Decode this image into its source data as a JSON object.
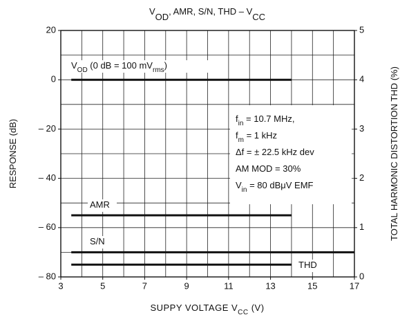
{
  "chart_data": {
    "type": "line",
    "title": [
      "V",
      "OD",
      ", AMR, S/N, THD  –  V",
      "CC"
    ],
    "xlabel": [
      "SUPPY VOLTAGE   V",
      "CC",
      "   (V)"
    ],
    "ylabel": [
      "RESPONSE  (dB)"
    ],
    "y2label": [
      "TOTAL HARMONIC DISTORTION  THD  (%)"
    ],
    "xlim": [
      3,
      17
    ],
    "xticks": [
      3,
      5,
      7,
      9,
      11,
      13,
      15,
      17
    ],
    "xgrid": [
      3,
      4,
      5,
      6,
      7,
      8,
      9,
      10,
      11,
      12,
      13,
      14,
      15,
      16,
      17
    ],
    "ylim": [
      -80,
      20
    ],
    "yticks": [
      20,
      0,
      {
        "value": -20,
        "label": "– 20"
      },
      {
        "value": -40,
        "label": "– 40"
      },
      {
        "value": -60,
        "label": "– 60"
      },
      {
        "value": -80,
        "label": "– 80"
      }
    ],
    "ygrid": [
      -80,
      -70,
      -60,
      -50,
      -40,
      -30,
      -20,
      -10,
      0,
      10,
      20
    ],
    "y2lim": [
      0,
      5
    ],
    "y2ticks": [
      0,
      1,
      2,
      3,
      4,
      5
    ],
    "grid": true,
    "series": [
      {
        "name": [
          "V",
          "OD",
          " (0 dB = 100 mV",
          "rms",
          ")"
        ],
        "color": "#111",
        "x": [
          3.5,
          14
        ],
        "values": [
          0,
          0
        ]
      },
      {
        "name": [
          "AMR"
        ],
        "color": "#111",
        "x": [
          3.5,
          14
        ],
        "values": [
          -55,
          -55
        ]
      },
      {
        "name": [
          "S/N"
        ],
        "color": "#111",
        "x": [
          3.5,
          17
        ],
        "values": [
          -70,
          -70
        ]
      },
      {
        "name": [
          "THD"
        ],
        "color": "#111",
        "x": [
          3.5,
          14
        ],
        "values": [
          0.25,
          0.25
        ],
        "axis": "y2"
      }
    ],
    "annotation": [
      [
        "f",
        "in",
        " = 10.7 MHz,"
      ],
      [
        "f",
        "m",
        " = 1 kHz"
      ],
      [
        "Δf = ± 22.5 kHz dev"
      ],
      [
        "AM MOD = 30%"
      ],
      [
        "V",
        "in",
        " = 80 dBμV  EMF"
      ]
    ]
  }
}
